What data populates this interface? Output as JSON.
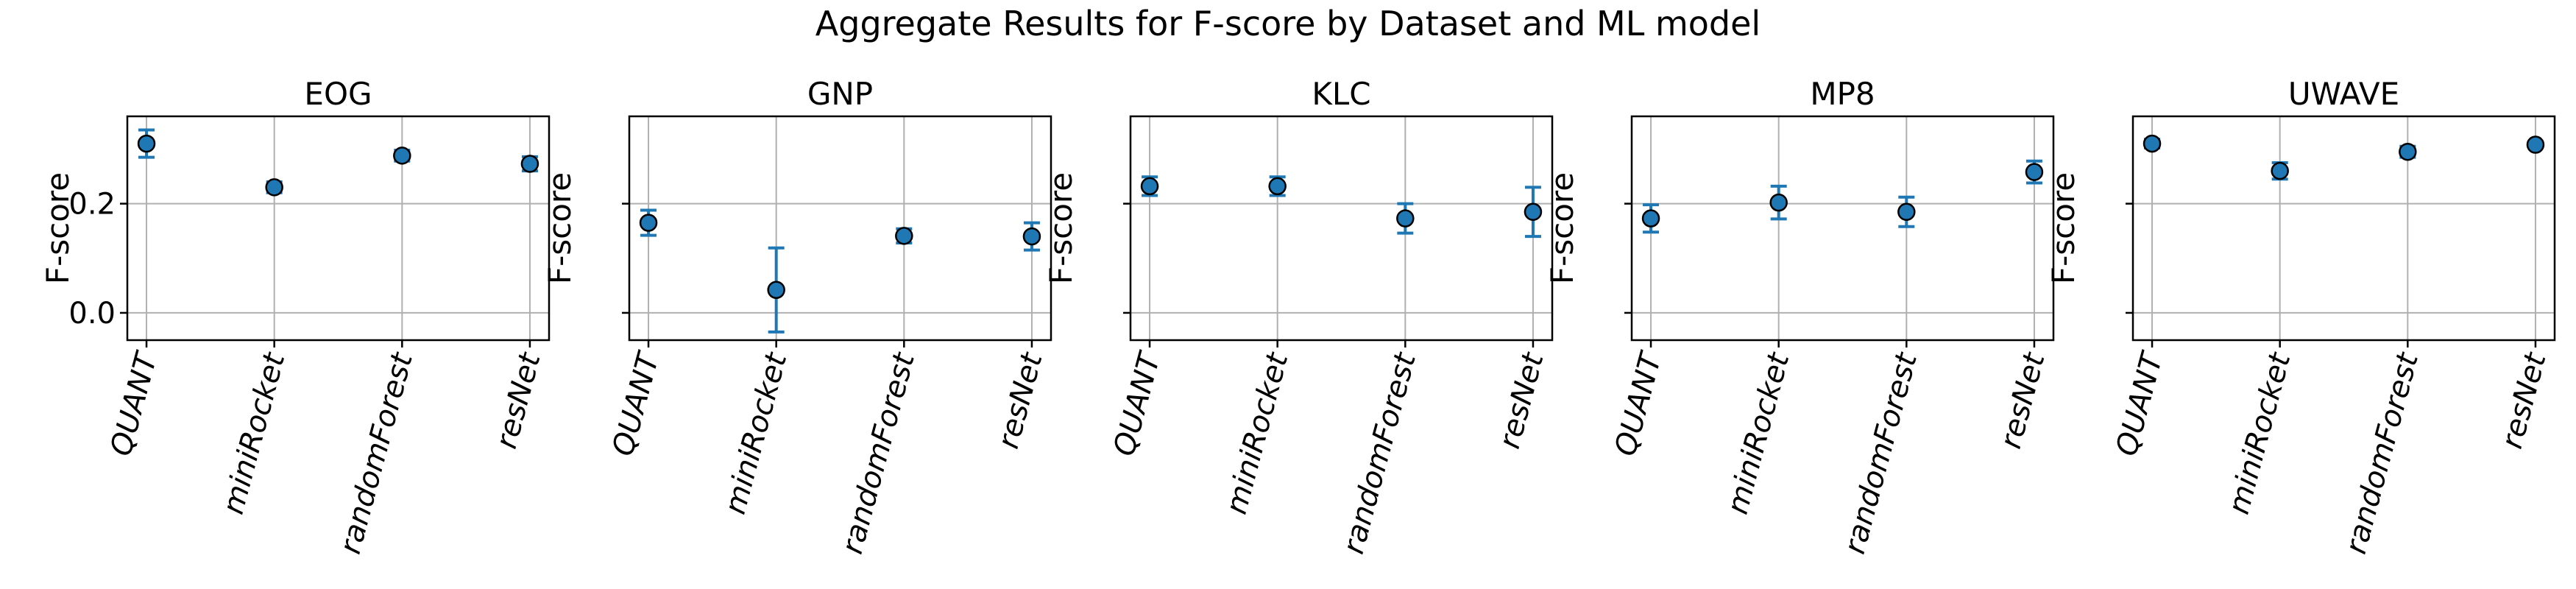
{
  "chart_data": {
    "type": "scatter",
    "title": "Aggregate Results for F-score by Dataset and ML model",
    "categories": [
      "QUANT",
      "miniRocket",
      "randomForest",
      "resNet"
    ],
    "ylabel": "F-score",
    "ylim": [
      -0.05,
      0.36
    ],
    "yticks": [
      0.0,
      0.2
    ],
    "ytick_labels": [
      "0.0",
      "0.2"
    ],
    "grid": true,
    "panels": [
      {
        "title": "EOG",
        "show_ytick_labels": true,
        "values": [
          0.31,
          0.23,
          0.288,
          0.273
        ],
        "errors": [
          0.025,
          0.01,
          0.01,
          0.013
        ]
      },
      {
        "title": "GNP",
        "show_ytick_labels": false,
        "values": [
          0.165,
          0.042,
          0.141,
          0.14
        ],
        "errors": [
          0.023,
          0.077,
          0.013,
          0.025
        ]
      },
      {
        "title": "KLC",
        "show_ytick_labels": false,
        "values": [
          0.232,
          0.232,
          0.173,
          0.185
        ],
        "errors": [
          0.017,
          0.017,
          0.027,
          0.045
        ]
      },
      {
        "title": "MP8",
        "show_ytick_labels": false,
        "values": [
          0.173,
          0.202,
          0.185,
          0.258
        ],
        "errors": [
          0.025,
          0.03,
          0.027,
          0.02
        ]
      },
      {
        "title": "UWAVE",
        "show_ytick_labels": false,
        "values": [
          0.31,
          0.26,
          0.295,
          0.308
        ],
        "errors": [
          0.008,
          0.015,
          0.01,
          0.005
        ]
      }
    ]
  }
}
